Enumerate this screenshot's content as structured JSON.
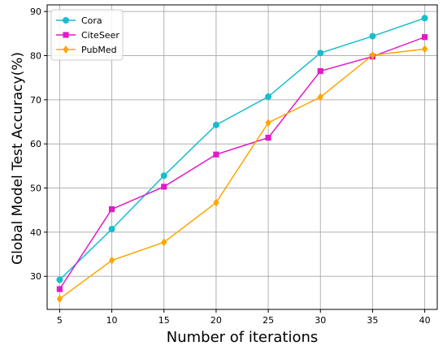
{
  "chart_data": {
    "type": "line",
    "xlabel": "Number of iterations",
    "ylabel": "Global Model Test Accuracy(%)",
    "x": [
      5,
      10,
      15,
      20,
      25,
      30,
      35,
      40
    ],
    "xticks": [
      "5",
      "10",
      "15",
      "20",
      "25",
      "30",
      "35",
      "40"
    ],
    "yticks": [
      "30",
      "40",
      "50",
      "60",
      "70",
      "80",
      "90"
    ],
    "xlim": [
      3.8,
      41.2
    ],
    "ylim": [
      22.5,
      91.5
    ],
    "grid": true,
    "legend_position": "top-left",
    "series": [
      {
        "name": "Cora",
        "color": "#17becf",
        "marker": "circle",
        "values": [
          29.2,
          40.7,
          52.8,
          64.3,
          70.7,
          80.6,
          84.4,
          88.5
        ]
      },
      {
        "name": "CiteSeer",
        "color": "#e01bc7",
        "marker": "square",
        "values": [
          27.1,
          45.2,
          50.3,
          57.6,
          61.4,
          76.5,
          79.8,
          84.2
        ]
      },
      {
        "name": "PubMed",
        "color": "#ffa500",
        "marker": "diamond",
        "values": [
          24.9,
          33.6,
          37.7,
          46.7,
          64.8,
          70.6,
          80.1,
          81.5
        ]
      }
    ]
  }
}
